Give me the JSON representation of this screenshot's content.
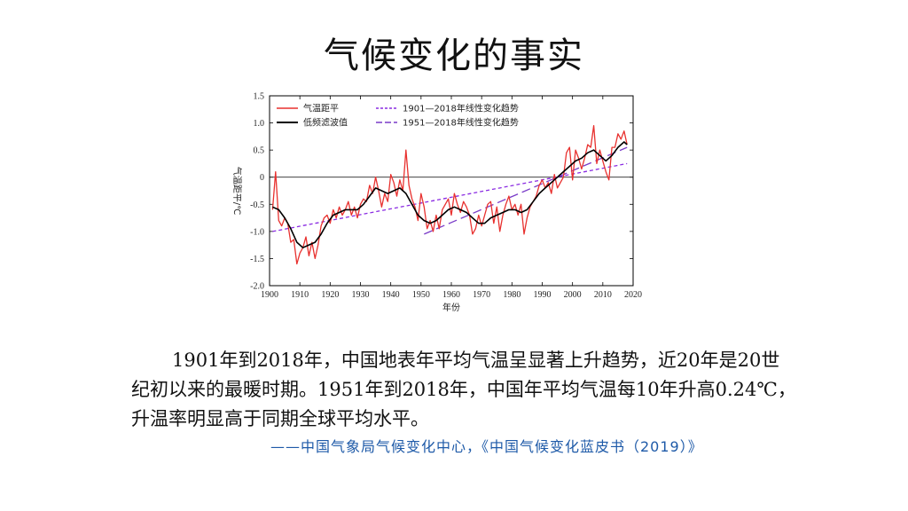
{
  "slide": {
    "title": "气候变化的事实",
    "paragraph": "1901年到2018年，中国地表年平均气温呈显著上升趋势，近20年是20世纪初以来的最暖时期。1951年到2018年，中国年平均气温每10年升高0.24℃，升温率明显高于同期全球平均水平。",
    "source": "——中国气象局气候变化中心，《中国气候变化蓝皮书（2019）》"
  },
  "colors": {
    "anomaly": "#e8312f",
    "smooth": "#000000",
    "trend1901": "#8a2be2",
    "trend1951": "#7a3cc8",
    "source_text": "#1e5aa8"
  },
  "chart_data": {
    "type": "line",
    "title": "",
    "xlabel": "年份",
    "ylabel": "气温距平/℃",
    "xlim": [
      1900,
      2020
    ],
    "ylim": [
      -2.0,
      1.5
    ],
    "xticks": [
      1900,
      1910,
      1920,
      1930,
      1940,
      1950,
      1960,
      1970,
      1980,
      1990,
      2000,
      2010,
      2020
    ],
    "yticks": [
      1.5,
      1.0,
      0.5,
      0,
      -0.5,
      -1.0,
      -1.5,
      -2.0
    ],
    "ytick_labels": [
      "1.5",
      "1.0",
      "0.5",
      "0",
      "-0.5",
      "-1.0",
      "-1.5",
      "-2.0"
    ],
    "zero_line": true,
    "legend_position": "top",
    "series": [
      {
        "name": "气温距平",
        "style": "solid",
        "x": [
          1901,
          1902,
          1903,
          1904,
          1905,
          1906,
          1907,
          1908,
          1909,
          1910,
          1911,
          1912,
          1913,
          1914,
          1915,
          1916,
          1917,
          1918,
          1919,
          1920,
          1921,
          1922,
          1923,
          1924,
          1925,
          1926,
          1927,
          1928,
          1929,
          1930,
          1931,
          1932,
          1933,
          1934,
          1935,
          1936,
          1937,
          1938,
          1939,
          1940,
          1941,
          1942,
          1943,
          1944,
          1945,
          1946,
          1947,
          1948,
          1949,
          1950,
          1951,
          1952,
          1953,
          1954,
          1955,
          1956,
          1957,
          1958,
          1959,
          1960,
          1961,
          1962,
          1963,
          1964,
          1965,
          1966,
          1967,
          1968,
          1969,
          1970,
          1971,
          1972,
          1973,
          1974,
          1975,
          1976,
          1977,
          1978,
          1979,
          1980,
          1981,
          1982,
          1983,
          1984,
          1985,
          1986,
          1987,
          1988,
          1989,
          1990,
          1991,
          1992,
          1993,
          1994,
          1995,
          1996,
          1997,
          1998,
          1999,
          2000,
          2001,
          2002,
          2003,
          2004,
          2005,
          2006,
          2007,
          2008,
          2009,
          2010,
          2011,
          2012,
          2013,
          2014,
          2015,
          2016,
          2017,
          2018
        ],
        "values": [
          -0.6,
          0.1,
          -0.8,
          -0.9,
          -0.75,
          -0.85,
          -1.2,
          -1.15,
          -1.6,
          -1.4,
          -1.3,
          -1.1,
          -1.45,
          -1.2,
          -1.5,
          -1.25,
          -0.9,
          -0.75,
          -0.7,
          -0.85,
          -0.6,
          -0.75,
          -0.55,
          -0.7,
          -0.6,
          -0.45,
          -0.7,
          -0.55,
          -0.75,
          -0.5,
          -0.4,
          -0.45,
          -0.15,
          -0.3,
          0.0,
          -0.25,
          -0.55,
          -0.3,
          -0.45,
          0.05,
          -0.1,
          -0.35,
          -0.05,
          -0.25,
          0.5,
          -0.15,
          -0.4,
          -0.55,
          -0.8,
          -0.3,
          -0.55,
          -0.95,
          -0.8,
          -1.0,
          -0.7,
          -0.95,
          -0.6,
          -0.5,
          -0.4,
          -0.7,
          -0.3,
          -0.5,
          -0.65,
          -0.45,
          -0.55,
          -0.7,
          -1.05,
          -0.95,
          -0.7,
          -0.9,
          -0.7,
          -0.5,
          -0.45,
          -0.85,
          -0.55,
          -1.0,
          -0.7,
          -0.5,
          -0.35,
          -0.6,
          -0.5,
          -0.7,
          -0.5,
          -1.05,
          -0.75,
          -0.55,
          -0.45,
          -0.35,
          -0.15,
          -0.05,
          -0.2,
          -0.1,
          -0.3,
          0.05,
          -0.2,
          -0.1,
          0.0,
          0.45,
          0.55,
          -0.05,
          0.5,
          0.35,
          0.15,
          0.35,
          0.6,
          0.55,
          0.95,
          0.25,
          0.5,
          0.3,
          0.1,
          -0.05,
          0.55,
          0.55,
          0.8,
          0.7,
          0.85,
          0.6
        ]
      },
      {
        "name": "低频滤波值",
        "style": "solid",
        "x": [
          1901,
          1903,
          1905,
          1907,
          1909,
          1911,
          1913,
          1915,
          1917,
          1919,
          1921,
          1923,
          1925,
          1927,
          1929,
          1931,
          1933,
          1935,
          1937,
          1939,
          1941,
          1943,
          1945,
          1947,
          1949,
          1951,
          1953,
          1955,
          1957,
          1959,
          1961,
          1963,
          1965,
          1967,
          1969,
          1971,
          1973,
          1975,
          1977,
          1979,
          1981,
          1983,
          1985,
          1987,
          1989,
          1991,
          1993,
          1995,
          1997,
          1999,
          2001,
          2003,
          2005,
          2007,
          2009,
          2011,
          2013,
          2015,
          2017,
          2018
        ],
        "values": [
          -0.55,
          -0.6,
          -0.75,
          -0.95,
          -1.2,
          -1.3,
          -1.25,
          -1.2,
          -1.05,
          -0.85,
          -0.7,
          -0.65,
          -0.6,
          -0.6,
          -0.6,
          -0.5,
          -0.35,
          -0.2,
          -0.25,
          -0.3,
          -0.25,
          -0.2,
          -0.3,
          -0.5,
          -0.7,
          -0.8,
          -0.85,
          -0.8,
          -0.7,
          -0.6,
          -0.55,
          -0.6,
          -0.65,
          -0.75,
          -0.85,
          -0.85,
          -0.75,
          -0.7,
          -0.65,
          -0.6,
          -0.6,
          -0.65,
          -0.6,
          -0.45,
          -0.3,
          -0.2,
          -0.1,
          0.0,
          0.1,
          0.2,
          0.3,
          0.35,
          0.45,
          0.5,
          0.4,
          0.3,
          0.4,
          0.55,
          0.65,
          0.6
        ]
      },
      {
        "name": "1901—2018年线性变化趋势",
        "style": "dashed",
        "x": [
          1901,
          2018
        ],
        "values": [
          -1.0,
          0.25
        ]
      },
      {
        "name": "1951—2018年线性变化趋势",
        "style": "longdash",
        "x": [
          1951,
          2018
        ],
        "values": [
          -1.05,
          0.55
        ]
      }
    ]
  }
}
